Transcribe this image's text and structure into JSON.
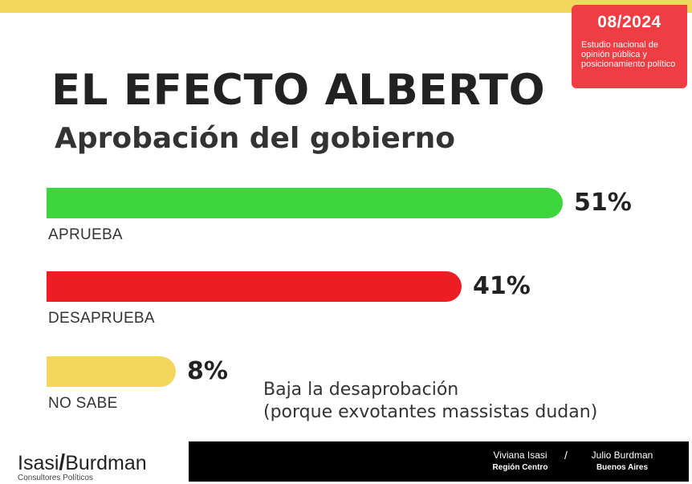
{
  "header": {
    "date": "08/2024",
    "badge_text": "Estudio nacional de opinión pública y posicionamiento político"
  },
  "colors": {
    "approve": "#3ed43e",
    "disapprove": "#ee1c23",
    "unknown": "#f2d65e",
    "badge": "#ee3d43"
  },
  "chart_data": {
    "type": "bar",
    "orientation": "horizontal",
    "title": "EL EFECTO ALBERTO",
    "subtitle": "Aprobación del gobierno",
    "categories": [
      "APRUEBA",
      "DESAPRUEBA",
      "NO SABE"
    ],
    "values": [
      51,
      41,
      8
    ],
    "value_labels": [
      "51%",
      "41%",
      "8%"
    ],
    "unit": "%",
    "xlim": [
      0,
      100
    ],
    "grid": false,
    "legend": "none"
  },
  "note": {
    "line1": "Baja la desaprobación",
    "line2": "(porque exvotantes massistas dudan)"
  },
  "footer": {
    "brand_left": "Isasi",
    "brand_slash": "/",
    "brand_right": "Burdman",
    "brand_tag": "Consultores Políticos",
    "person1_name": "Viviana Isasi",
    "person1_region": "Región Centro",
    "separator": "/",
    "person2_name": "Julio Burdman",
    "person2_region": "Buenos Aires"
  }
}
